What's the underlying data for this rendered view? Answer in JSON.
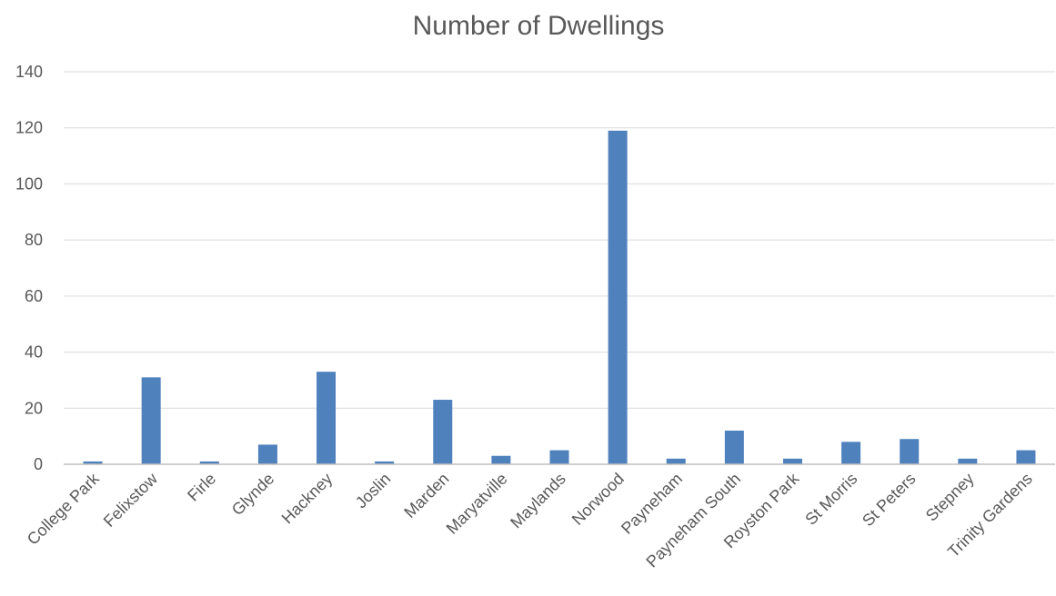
{
  "chart_data": {
    "type": "bar",
    "title": "Number of Dwellings",
    "xlabel": "",
    "ylabel": "",
    "categories": [
      "College Park",
      "Felixstow",
      "Firle",
      "Glynde",
      "Hackney",
      "Joslin",
      "Marden",
      "Maryatville",
      "Maylands",
      "Norwood",
      "Payneham",
      "Payneham South",
      "Royston Park",
      "St Morris",
      "St Peters",
      "Stepney",
      "Trinity Gardens"
    ],
    "values": [
      1,
      31,
      1,
      7,
      33,
      1,
      23,
      3,
      5,
      119,
      2,
      12,
      2,
      8,
      9,
      2,
      5
    ],
    "ylim": [
      0,
      140
    ],
    "yticks": [
      0,
      20,
      40,
      60,
      80,
      100,
      120,
      140
    ],
    "grid": true,
    "legend": "none",
    "bar_color": "#4f81bd"
  }
}
